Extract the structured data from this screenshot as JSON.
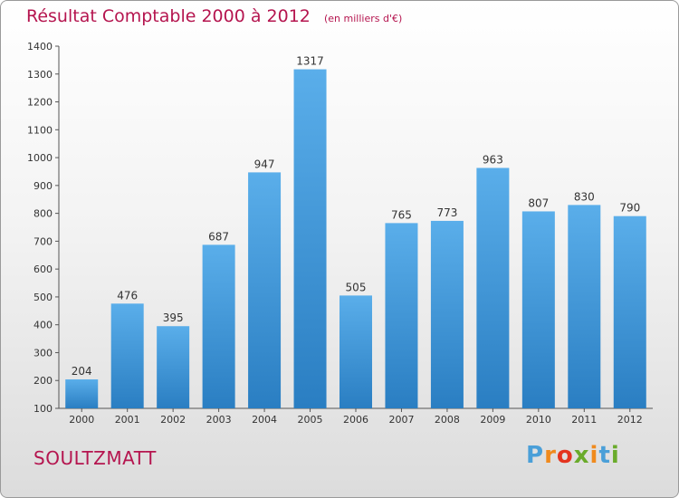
{
  "title": "Résultat Comptable 2000 à 2012",
  "title_unit": "(en milliers d'€)",
  "commune": "SOULTZMATT",
  "logo": {
    "text": "Proxiti",
    "colors": [
      "#4a9fd8",
      "#f08a1d",
      "#e4341f",
      "#6aab2b",
      "#f08a1d",
      "#4a9fd8",
      "#6aab2b"
    ]
  },
  "colors": {
    "title": "#b5154f",
    "bar_top": "#5aaeea",
    "bar_bottom": "#2a7ec2",
    "axis": "#555555"
  },
  "chart_data": {
    "type": "bar",
    "categories": [
      "2000",
      "2001",
      "2002",
      "2003",
      "2004",
      "2005",
      "2006",
      "2007",
      "2008",
      "2009",
      "2010",
      "2011",
      "2012"
    ],
    "values": [
      204,
      476,
      395,
      687,
      947,
      1317,
      505,
      765,
      773,
      963,
      807,
      830,
      790
    ],
    "ylim": [
      100,
      1400
    ],
    "yticks": [
      100,
      200,
      300,
      400,
      500,
      600,
      700,
      800,
      900,
      1000,
      1100,
      1200,
      1300,
      1400
    ],
    "grid": false,
    "legend": "none"
  }
}
